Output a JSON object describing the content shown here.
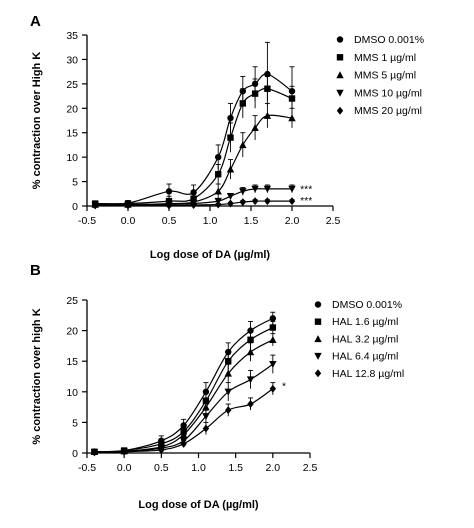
{
  "chart_data": [
    {
      "panel": "A",
      "type": "line",
      "xlabel": "Log dose of DA (µg/ml)",
      "ylabel": "% contraction over High K",
      "xlim": [
        -0.5,
        2.5
      ],
      "ylim": [
        0,
        35
      ],
      "xticks": [
        "-0.5",
        "0.0",
        "0.5",
        "1.0",
        "1.5",
        "2.0",
        "2.5"
      ],
      "yticks": [
        "0",
        "5",
        "10",
        "15",
        "20",
        "25",
        "30",
        "35"
      ],
      "grid": false,
      "legend": "top-right",
      "x": [
        -0.4,
        0,
        0.5,
        0.8,
        1.1,
        1.25,
        1.4,
        1.55,
        1.7,
        2.0
      ],
      "series": [
        {
          "name": "DMSO 0.001%",
          "marker": "circle",
          "values": [
            0.5,
            0.6,
            3.0,
            2.8,
            10.0,
            18.0,
            23.5,
            25.0,
            27.0,
            23.5
          ],
          "errors": [
            0.5,
            0.5,
            1.5,
            1.5,
            2.5,
            3.0,
            3.0,
            3.5,
            6.5,
            5.0
          ]
        },
        {
          "name": "MMS 1 µg/ml",
          "marker": "square",
          "values": [
            0.5,
            0.5,
            1.0,
            1.5,
            6.5,
            14.0,
            21.0,
            23.0,
            24.0,
            22.0
          ],
          "errors": [
            0.4,
            0.4,
            1.0,
            1.0,
            2.0,
            3.0,
            3.0,
            3.0,
            2.5,
            2.5
          ]
        },
        {
          "name": "MMS 5 µg/ml",
          "marker": "triangle-up",
          "values": [
            0.3,
            0.3,
            0.5,
            0.8,
            3.0,
            7.5,
            12.5,
            16.0,
            18.5,
            18.0
          ],
          "errors": [
            0.3,
            0.3,
            0.5,
            0.5,
            1.5,
            2.0,
            2.5,
            2.5,
            2.5,
            2.0
          ]
        },
        {
          "name": "MMS 10 µg/ml",
          "marker": "triangle-down",
          "values": [
            0.2,
            0.2,
            0.3,
            0.5,
            1.0,
            2.0,
            3.0,
            3.5,
            3.5,
            3.5
          ],
          "errors": [
            0.2,
            0.2,
            0.3,
            0.3,
            0.5,
            0.5,
            0.8,
            0.8,
            0.8,
            0.8
          ]
        },
        {
          "name": "MMS 20 µg/ml",
          "marker": "diamond",
          "values": [
            0.1,
            0.1,
            0.1,
            0.2,
            0.3,
            0.5,
            0.8,
            1.0,
            1.0,
            1.0
          ],
          "errors": [
            0.1,
            0.1,
            0.1,
            0.1,
            0.2,
            0.2,
            0.3,
            0.3,
            0.3,
            0.3
          ]
        }
      ],
      "annotations": [
        {
          "text": "***",
          "x": 2.05,
          "y": 3.6
        },
        {
          "text": "***",
          "x": 2.05,
          "y": 1.2
        }
      ]
    },
    {
      "panel": "B",
      "type": "line",
      "xlabel": "Log dose of DA (µg/ml)",
      "ylabel": "% contraction over high K",
      "xlim": [
        -0.5,
        2.5
      ],
      "ylim": [
        0,
        25
      ],
      "xticks": [
        "-0.5",
        "0.0",
        "0.5",
        "1.0",
        "1.5",
        "2.0",
        "2.5"
      ],
      "yticks": [
        "0",
        "5",
        "10",
        "15",
        "20",
        "25"
      ],
      "grid": false,
      "legend": "top-right",
      "x": [
        -0.4,
        0,
        0.5,
        0.8,
        1.1,
        1.4,
        1.7,
        2.0
      ],
      "series": [
        {
          "name": "DMSO 0.001%",
          "marker": "circle",
          "values": [
            0.2,
            0.4,
            2.0,
            4.5,
            10.0,
            16.5,
            20.0,
            22.0
          ],
          "errors": [
            0.2,
            0.3,
            0.8,
            1.0,
            1.5,
            1.5,
            1.5,
            1.0
          ]
        },
        {
          "name": "HAL 1.6 µg/ml",
          "marker": "square",
          "values": [
            0.2,
            0.4,
            1.5,
            3.5,
            8.5,
            15.0,
            18.5,
            20.5
          ],
          "errors": [
            0.2,
            0.3,
            0.8,
            1.0,
            1.5,
            1.5,
            1.5,
            1.0
          ]
        },
        {
          "name": "HAL 3.2 µg/ml",
          "marker": "triangle-up",
          "values": [
            0.2,
            0.3,
            1.0,
            3.0,
            7.5,
            13.0,
            16.5,
            18.5
          ],
          "errors": [
            0.2,
            0.3,
            0.6,
            1.0,
            1.5,
            1.5,
            1.5,
            1.0
          ]
        },
        {
          "name": "HAL 6.4 µg/ml",
          "marker": "triangle-down",
          "values": [
            0.1,
            0.2,
            0.8,
            2.0,
            6.0,
            10.0,
            12.0,
            14.5
          ],
          "errors": [
            0.1,
            0.2,
            0.5,
            0.8,
            1.0,
            1.5,
            1.5,
            1.5
          ]
        },
        {
          "name": "HAL 12.8 µg/ml",
          "marker": "diamond",
          "values": [
            0.1,
            0.2,
            0.5,
            1.5,
            4.0,
            7.0,
            8.0,
            10.5
          ],
          "errors": [
            0.1,
            0.2,
            0.3,
            0.5,
            1.0,
            1.0,
            1.0,
            1.0
          ]
        }
      ],
      "annotations": [
        {
          "text": "*",
          "x": 2.07,
          "y": 11.0
        }
      ]
    }
  ]
}
